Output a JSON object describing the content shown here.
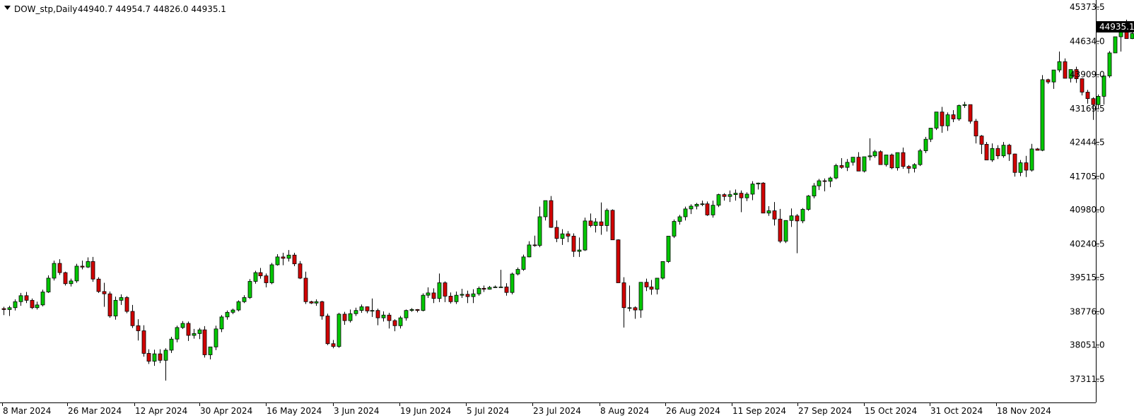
{
  "header": {
    "menu_icon": "triangle-down-icon",
    "symbol": "DOW_stp,Daily",
    "ohlc": "44940.7 44954.7 44826.0 44935.1"
  },
  "current_price_label": "44935.1",
  "colors": {
    "bull": "#00c800",
    "bear": "#d20000",
    "wick": "#000000",
    "background": "#ffffff",
    "price_tag_bg": "#000000",
    "price_tag_text": "#ffffff"
  },
  "chart_data": {
    "type": "candlestick",
    "symbol": "DOW_stp",
    "timeframe": "Daily",
    "y_ticks": [
      "45373.5",
      "44634.0",
      "43909.0",
      "43169.5",
      "42444.5",
      "41705.0",
      "40980.0",
      "40240.5",
      "39515.5",
      "38776.0",
      "38051.0",
      "37311.5"
    ],
    "x_ticks": [
      "8 Mar 2024",
      "26 Mar 2024",
      "12 Apr 2024",
      "30 Apr 2024",
      "16 May 2024",
      "3 Jun 2024",
      "19 Jun 2024",
      "5 Jul 2024",
      "23 Jul 2024",
      "8 Aug 2024",
      "26 Aug 2024",
      "11 Sep 2024",
      "27 Sep 2024",
      "15 Oct 2024",
      "31 Oct 2024",
      "18 Nov 2024"
    ],
    "ylim": [
      37100,
      45500
    ],
    "candles": [
      [
        38840,
        38880,
        38700,
        38820
      ],
      [
        38820,
        38900,
        38680,
        38860
      ],
      [
        38860,
        39040,
        38800,
        38990
      ],
      [
        38990,
        39180,
        38900,
        39120
      ],
      [
        39120,
        39200,
        38960,
        39020
      ],
      [
        39020,
        39060,
        38830,
        38860
      ],
      [
        38860,
        38990,
        38820,
        38920
      ],
      [
        38920,
        39250,
        38890,
        39200
      ],
      [
        39200,
        39560,
        39180,
        39500
      ],
      [
        39500,
        39880,
        39450,
        39820
      ],
      [
        39820,
        39910,
        39570,
        39620
      ],
      [
        39620,
        39640,
        39340,
        39380
      ],
      [
        39380,
        39490,
        39320,
        39440
      ],
      [
        39440,
        39810,
        39400,
        39760
      ],
      [
        39760,
        39880,
        39690,
        39740
      ],
      [
        39740,
        39950,
        39720,
        39860
      ],
      [
        39860,
        39960,
        39420,
        39480
      ],
      [
        39480,
        39520,
        39180,
        39210
      ],
      [
        39210,
        39400,
        38880,
        39160
      ],
      [
        39160,
        39210,
        38640,
        38680
      ],
      [
        38680,
        39100,
        38600,
        39020
      ],
      [
        39020,
        39150,
        38920,
        39080
      ],
      [
        39080,
        39110,
        38740,
        38780
      ],
      [
        38780,
        38920,
        38420,
        38470
      ],
      [
        38470,
        38610,
        38150,
        38360
      ],
      [
        38360,
        38480,
        37800,
        37870
      ],
      [
        37870,
        37960,
        37640,
        37700
      ],
      [
        37700,
        37950,
        37600,
        37860
      ],
      [
        37860,
        37960,
        37660,
        37720
      ],
      [
        37720,
        37980,
        37280,
        37940
      ],
      [
        37940,
        38230,
        37880,
        38180
      ],
      [
        38180,
        38470,
        38110,
        38430
      ],
      [
        38430,
        38570,
        38400,
        38520
      ],
      [
        38520,
        38560,
        38140,
        38260
      ],
      [
        38260,
        38400,
        38190,
        38300
      ],
      [
        38300,
        38420,
        38180,
        38380
      ],
      [
        38380,
        38460,
        37780,
        37840
      ],
      [
        37840,
        37960,
        37740,
        38010
      ],
      [
        38010,
        38470,
        37940,
        38400
      ],
      [
        38400,
        38700,
        38330,
        38660
      ],
      [
        38660,
        38800,
        38600,
        38760
      ],
      [
        38760,
        38840,
        38720,
        38810
      ],
      [
        38810,
        39020,
        38780,
        38990
      ],
      [
        38990,
        39130,
        38960,
        39080
      ],
      [
        39080,
        39480,
        39050,
        39430
      ],
      [
        39430,
        39660,
        39380,
        39620
      ],
      [
        39620,
        39720,
        39490,
        39550
      ],
      [
        39550,
        39600,
        39300,
        39400
      ],
      [
        39400,
        39830,
        39370,
        39790
      ],
      [
        39790,
        40020,
        39770,
        39960
      ],
      [
        39960,
        40050,
        39780,
        39930
      ],
      [
        39930,
        40110,
        39860,
        40000
      ],
      [
        40000,
        40050,
        39760,
        39810
      ],
      [
        39810,
        39870,
        39480,
        39500
      ],
      [
        39500,
        39640,
        38940,
        38990
      ],
      [
        38990,
        39010,
        38940,
        38960
      ],
      [
        38960,
        39040,
        38900,
        38990
      ],
      [
        38990,
        39010,
        38600,
        38680
      ],
      [
        38680,
        38730,
        38050,
        38080
      ],
      [
        38080,
        38160,
        37980,
        38020
      ],
      [
        38020,
        38750,
        37990,
        38720
      ],
      [
        38720,
        38770,
        38490,
        38580
      ],
      [
        38580,
        38820,
        38540,
        38730
      ],
      [
        38730,
        38860,
        38680,
        38800
      ],
      [
        38800,
        38930,
        38750,
        38880
      ],
      [
        38880,
        38890,
        38740,
        38790
      ],
      [
        38790,
        39060,
        38660,
        38800
      ],
      [
        38800,
        38840,
        38480,
        38640
      ],
      [
        38640,
        38780,
        38560,
        38700
      ],
      [
        38700,
        38750,
        38410,
        38580
      ],
      [
        38580,
        38610,
        38350,
        38470
      ],
      [
        38470,
        38680,
        38410,
        38640
      ],
      [
        38640,
        38820,
        38580,
        38800
      ],
      [
        38800,
        38850,
        38770,
        38820
      ],
      [
        38820,
        38830,
        38760,
        38800
      ],
      [
        38800,
        39170,
        38780,
        39130
      ],
      [
        39130,
        39300,
        39070,
        39180
      ],
      [
        39180,
        39280,
        38960,
        39060
      ],
      [
        39060,
        39600,
        38980,
        39400
      ],
      [
        39400,
        39430,
        38980,
        39110
      ],
      [
        39110,
        39190,
        38950,
        38990
      ],
      [
        38990,
        39210,
        38940,
        39130
      ],
      [
        39130,
        39270,
        39070,
        39150
      ],
      [
        39150,
        39230,
        38960,
        39100
      ],
      [
        39100,
        39260,
        38960,
        39160
      ],
      [
        39160,
        39320,
        39120,
        39280
      ],
      [
        39280,
        39340,
        39200,
        39260
      ],
      [
        39260,
        39330,
        39250,
        39300
      ],
      [
        39300,
        39340,
        39290,
        39310
      ],
      [
        39310,
        39680,
        39300,
        39310
      ],
      [
        39310,
        39390,
        39120,
        39190
      ],
      [
        39190,
        39620,
        39150,
        39590
      ],
      [
        39590,
        39730,
        39560,
        39690
      ],
      [
        39690,
        40010,
        39660,
        39960
      ],
      [
        39960,
        40300,
        39950,
        40220
      ],
      [
        40220,
        40420,
        40180,
        40210
      ],
      [
        40210,
        41050,
        40170,
        40830
      ],
      [
        40830,
        41150,
        40750,
        41180
      ],
      [
        41180,
        41280,
        40590,
        40600
      ],
      [
        40600,
        40750,
        40280,
        40360
      ],
      [
        40360,
        40560,
        40220,
        40460
      ],
      [
        40460,
        40520,
        40280,
        40410
      ],
      [
        40410,
        40470,
        39960,
        40080
      ],
      [
        40080,
        40380,
        39960,
        40110
      ],
      [
        40110,
        40810,
        40090,
        40740
      ],
      [
        40740,
        40900,
        40600,
        40640
      ],
      [
        40640,
        40800,
        40490,
        40720
      ],
      [
        40720,
        41140,
        40440,
        40640
      ],
      [
        40640,
        41010,
        40510,
        40970
      ],
      [
        40970,
        40990,
        40360,
        40330
      ],
      [
        40330,
        40340,
        39450,
        39400
      ],
      [
        39400,
        39520,
        38430,
        38860
      ],
      [
        38860,
        39340,
        38780,
        38860
      ],
      [
        38860,
        38890,
        38620,
        38810
      ],
      [
        38810,
        39360,
        38640,
        39410
      ],
      [
        39410,
        39490,
        39220,
        39310
      ],
      [
        39310,
        39460,
        39140,
        39260
      ],
      [
        39260,
        39480,
        39150,
        39500
      ],
      [
        39500,
        39790,
        39470,
        39860
      ],
      [
        39860,
        40370,
        39830,
        40410
      ],
      [
        40410,
        40770,
        40370,
        40730
      ],
      [
        40730,
        40870,
        40660,
        40830
      ],
      [
        40830,
        41050,
        40750,
        41000
      ],
      [
        41000,
        41100,
        40890,
        41060
      ],
      [
        41060,
        41130,
        40990,
        41100
      ],
      [
        41100,
        41180,
        41060,
        41110
      ],
      [
        41110,
        41160,
        40850,
        40870
      ],
      [
        40870,
        41180,
        40810,
        41080
      ],
      [
        41080,
        41330,
        41040,
        41310
      ],
      [
        41310,
        41340,
        41180,
        41270
      ],
      [
        41270,
        41400,
        41150,
        41310
      ],
      [
        41310,
        41420,
        41180,
        41340
      ],
      [
        41340,
        41400,
        40930,
        41240
      ],
      [
        41240,
        41360,
        41170,
        41320
      ],
      [
        41320,
        41600,
        41190,
        41540
      ],
      [
        41540,
        41570,
        41420,
        41560
      ],
      [
        41560,
        41580,
        40990,
        40910
      ],
      [
        40910,
        41060,
        40850,
        40960
      ],
      [
        40960,
        41150,
        40640,
        40780
      ],
      [
        40780,
        41000,
        40260,
        40300
      ],
      [
        40300,
        40740,
        40260,
        40750
      ],
      [
        40750,
        41010,
        40610,
        40850
      ],
      [
        40850,
        40890,
        40040,
        40740
      ],
      [
        40740,
        41020,
        40690,
        40990
      ],
      [
        40990,
        41300,
        40960,
        41280
      ],
      [
        41280,
        41560,
        41230,
        41500
      ],
      [
        41500,
        41650,
        41410,
        41610
      ],
      [
        41610,
        41660,
        41380,
        41600
      ],
      [
        41600,
        41700,
        41470,
        41670
      ],
      [
        41670,
        41980,
        41640,
        41940
      ],
      [
        41940,
        42100,
        41870,
        41900
      ],
      [
        41900,
        42080,
        41820,
        42010
      ],
      [
        42010,
        42120,
        41940,
        42120
      ],
      [
        42120,
        42230,
        41870,
        41820
      ],
      [
        41820,
        42080,
        41790,
        42130
      ],
      [
        42130,
        42530,
        42050,
        42150
      ],
      [
        42150,
        42280,
        42110,
        42240
      ],
      [
        42240,
        42270,
        41960,
        41960
      ],
      [
        41960,
        42170,
        41920,
        42170
      ],
      [
        42170,
        42200,
        41860,
        41890
      ],
      [
        41890,
        42210,
        41830,
        42220
      ],
      [
        42220,
        42330,
        41870,
        41920
      ],
      [
        41920,
        41950,
        41770,
        41880
      ],
      [
        41880,
        41990,
        41790,
        41960
      ],
      [
        41960,
        42300,
        41930,
        42260
      ],
      [
        42260,
        42560,
        42210,
        42510
      ],
      [
        42510,
        42740,
        42450,
        42750
      ],
      [
        42750,
        43060,
        42710,
        43100
      ],
      [
        43100,
        43210,
        42650,
        42800
      ],
      [
        42800,
        43090,
        42690,
        43040
      ],
      [
        43040,
        43140,
        42880,
        42950
      ],
      [
        42950,
        43260,
        42910,
        43240
      ],
      [
        43240,
        43320,
        43190,
        43260
      ],
      [
        43260,
        43260,
        42850,
        42900
      ],
      [
        42900,
        42950,
        42420,
        42580
      ],
      [
        42580,
        42600,
        42190,
        42400
      ],
      [
        42400,
        42450,
        42070,
        42060
      ],
      [
        42060,
        42420,
        42020,
        42310
      ],
      [
        42310,
        42380,
        42080,
        42150
      ],
      [
        42150,
        42450,
        42110,
        42380
      ],
      [
        42380,
        42410,
        42040,
        42190
      ],
      [
        42190,
        42200,
        41700,
        41790
      ],
      [
        41790,
        42060,
        41710,
        42000
      ],
      [
        42000,
        42150,
        41690,
        41840
      ],
      [
        41840,
        42410,
        41810,
        42300
      ],
      [
        42300,
        42320,
        42290,
        42270
      ],
      [
        42270,
        43900,
        42250,
        43800
      ],
      [
        43800,
        43820,
        43710,
        43750
      ],
      [
        43750,
        44010,
        43600,
        44010
      ],
      [
        44010,
        44410,
        43960,
        44190
      ],
      [
        44190,
        44260,
        43830,
        43830
      ],
      [
        43830,
        43970,
        43740,
        44020
      ],
      [
        44020,
        44080,
        43730,
        43820
      ],
      [
        43820,
        43830,
        43460,
        43530
      ],
      [
        43530,
        43580,
        43280,
        43390
      ],
      [
        43390,
        43420,
        42930,
        43260
      ],
      [
        43260,
        43480,
        43180,
        43440
      ],
      [
        43440,
        43860,
        43260,
        43880
      ],
      [
        43880,
        44420,
        43840,
        44380
      ],
      [
        44380,
        44730,
        44380,
        44730
      ],
      [
        44730,
        44820,
        44410,
        44870
      ],
      [
        44870,
        45100,
        44700,
        44690
      ],
      [
        44690,
        44900,
        44680,
        44800
      ],
      [
        44800,
        45140,
        44760,
        44990
      ],
      [
        44940.7,
        44954.7,
        44826.0,
        44935.1
      ]
    ]
  }
}
